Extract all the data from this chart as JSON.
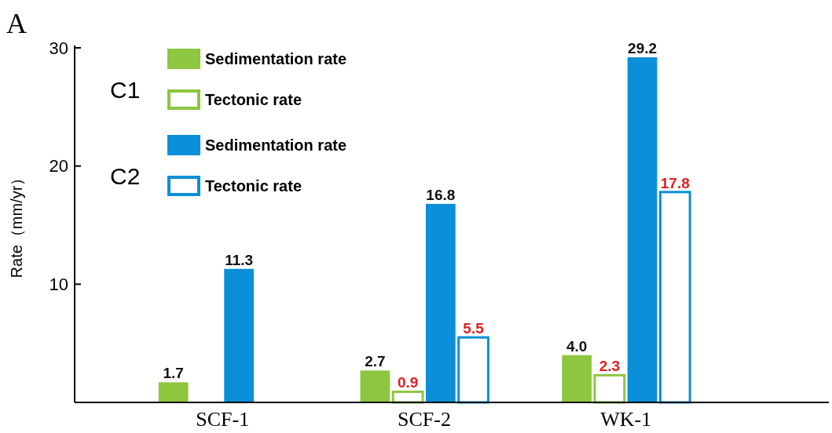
{
  "chart_data": {
    "type": "bar",
    "title": "A",
    "ylabel": "Rate（mm/yr）",
    "categories": [
      "SCF-1",
      "SCF-2",
      "WK-1"
    ],
    "series": [
      {
        "name": "Sedimentation rate",
        "color": "#8dc63f",
        "values": [
          1.7,
          2.7,
          4.0
        ],
        "value_labels": [
          "1.7",
          "2.7",
          "4.0"
        ]
      },
      {
        "name": "Tectonic rate",
        "color": "#8dc63f",
        "line_style": "solid",
        "values": [
          null,
          0.9,
          2.3
        ],
        "value_labels": [
          null,
          "0.9",
          "2.3"
        ]
      },
      {
        "name": "Sedimentation rate",
        "color": "#0a8fd8",
        "values": [
          11.3,
          16.8,
          29.2
        ],
        "value_labels": [
          "11.3",
          "16.8",
          "29.2"
        ]
      },
      {
        "name": "Tectonic rate",
        "color": "#0a8fd8",
        "line_style": "solid",
        "values": [
          null,
          5.5,
          17.8
        ],
        "value_labels": [
          null,
          "5.5",
          "17.8"
        ]
      }
    ],
    "annotations": [
      "C1",
      "C2"
    ],
    "ylim": [
      0,
      30.2
    ],
    "yticks": [
      10,
      20,
      30
    ],
    "grid": false,
    "legend": "top left"
  }
}
